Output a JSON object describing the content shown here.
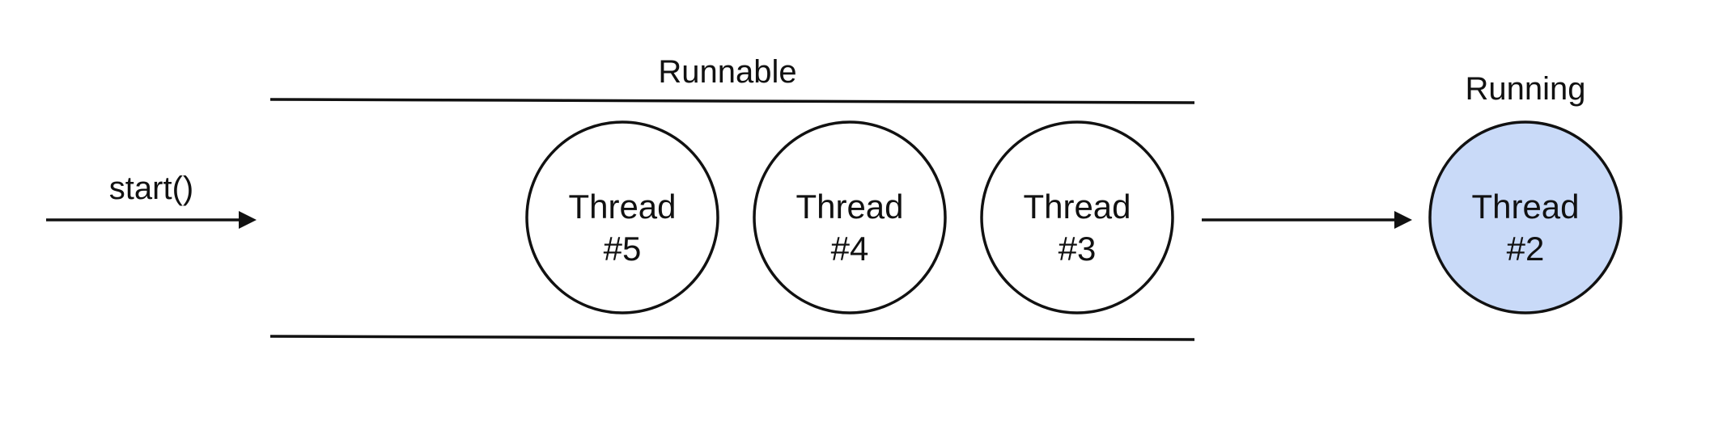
{
  "start_label": "start()",
  "runnable_label": "Runnable",
  "running_label": "Running",
  "queue": [
    {
      "line1": "Thread",
      "line2": "#5"
    },
    {
      "line1": "Thread",
      "line2": "#4"
    },
    {
      "line1": "Thread",
      "line2": "#3"
    }
  ],
  "running_thread": {
    "line1": "Thread",
    "line2": "#2"
  },
  "colors": {
    "stroke": "#111111",
    "queue_fill": "#ffffff",
    "running_fill": "#c9daf8"
  }
}
